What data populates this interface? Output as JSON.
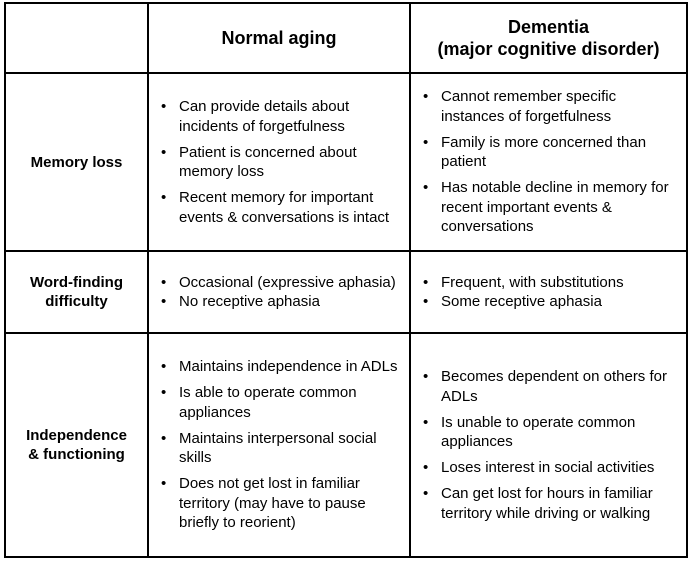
{
  "table": {
    "header": {
      "corner": "",
      "normal": "Normal aging",
      "dementia_line1": "Dementia",
      "dementia_line2": "(major cognitive disorder)"
    },
    "rows": [
      {
        "label_lines": [
          "Memory loss"
        ],
        "normal": [
          "Can provide details about incidents of forgetfulness",
          "Patient is concerned about memory loss",
          "Recent memory for important events & conversations is intact"
        ],
        "dementia": [
          "Cannot remember specific instances of forgetfulness",
          "Family is more concerned than patient",
          "Has notable decline in memory for recent important events & conversations"
        ]
      },
      {
        "label_lines": [
          "Word-finding",
          "difficulty"
        ],
        "normal": [
          "Occasional (expressive aphasia)",
          "No receptive aphasia"
        ],
        "dementia": [
          "Frequent, with substitutions",
          "Some receptive aphasia"
        ]
      },
      {
        "label_lines": [
          "Independence",
          "& functioning"
        ],
        "normal": [
          "Maintains independence in ADLs",
          "Is able to operate common appliances",
          "Maintains interpersonal social skills",
          "Does not get lost in familiar territory (may have to pause briefly to reorient)"
        ],
        "dementia": [
          "Becomes dependent on others for ADLs",
          "Is unable to operate common appliances",
          "Loses interest in social activities",
          "Can get lost for hours in familiar territory while driving or walking"
        ]
      }
    ]
  }
}
